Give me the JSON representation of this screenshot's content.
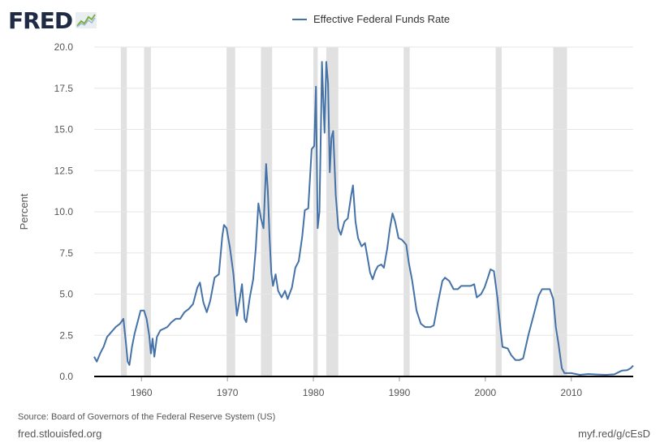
{
  "brand": {
    "logo_text": "FRED"
  },
  "footer": {
    "source": "Source: Board of Governors of the Federal Reserve System (US)",
    "site": "fred.stlouisfed.org",
    "short_url": "myf.red/g/cEsD"
  },
  "chart_data": {
    "type": "line",
    "title": "",
    "xlabel": "",
    "ylabel": "Percent",
    "xlim": [
      1954.5,
      2017.2
    ],
    "ylim": [
      0,
      20
    ],
    "yticks": [
      0.0,
      2.5,
      5.0,
      7.5,
      10.0,
      12.5,
      15.0,
      17.5,
      20.0
    ],
    "ytick_labels": [
      "0.0",
      "2.5",
      "5.0",
      "7.5",
      "10.0",
      "12.5",
      "15.0",
      "17.5",
      "20.0"
    ],
    "xticks": [
      1960,
      1970,
      1980,
      1990,
      2000,
      2010
    ],
    "xtick_labels": [
      "1960",
      "1970",
      "1980",
      "1990",
      "2000",
      "2010"
    ],
    "grid": true,
    "legend_position": "top-center",
    "recessions": [
      [
        1957.6,
        1958.3
      ],
      [
        1960.3,
        1961.1
      ],
      [
        1969.9,
        1970.9
      ],
      [
        1973.9,
        1975.2
      ],
      [
        1980.0,
        1980.5
      ],
      [
        1981.5,
        1982.9
      ],
      [
        1990.5,
        1991.2
      ],
      [
        2001.2,
        2001.9
      ],
      [
        2007.9,
        2009.5
      ]
    ],
    "series": [
      {
        "name": "Effective Federal Funds Rate",
        "color": "#4572a7",
        "points": [
          [
            1954.5,
            1.2
          ],
          [
            1954.8,
            0.9
          ],
          [
            1955.2,
            1.4
          ],
          [
            1955.6,
            1.8
          ],
          [
            1956.0,
            2.4
          ],
          [
            1956.5,
            2.7
          ],
          [
            1957.0,
            3.0
          ],
          [
            1957.5,
            3.2
          ],
          [
            1957.9,
            3.5
          ],
          [
            1958.2,
            2.0
          ],
          [
            1958.4,
            0.9
          ],
          [
            1958.6,
            0.7
          ],
          [
            1958.9,
            1.8
          ],
          [
            1959.2,
            2.6
          ],
          [
            1959.6,
            3.4
          ],
          [
            1959.9,
            4.0
          ],
          [
            1960.3,
            4.0
          ],
          [
            1960.6,
            3.5
          ],
          [
            1960.9,
            2.5
          ],
          [
            1961.1,
            1.4
          ],
          [
            1961.3,
            2.3
          ],
          [
            1961.5,
            1.2
          ],
          [
            1961.8,
            2.4
          ],
          [
            1962.2,
            2.8
          ],
          [
            1962.6,
            2.9
          ],
          [
            1963.0,
            3.0
          ],
          [
            1963.5,
            3.3
          ],
          [
            1964.0,
            3.5
          ],
          [
            1964.5,
            3.5
          ],
          [
            1965.0,
            3.9
          ],
          [
            1965.5,
            4.1
          ],
          [
            1966.0,
            4.4
          ],
          [
            1966.5,
            5.4
          ],
          [
            1966.8,
            5.7
          ],
          [
            1967.2,
            4.5
          ],
          [
            1967.6,
            3.9
          ],
          [
            1968.0,
            4.6
          ],
          [
            1968.5,
            6.0
          ],
          [
            1969.0,
            6.2
          ],
          [
            1969.4,
            8.5
          ],
          [
            1969.6,
            9.2
          ],
          [
            1969.9,
            9.0
          ],
          [
            1970.3,
            7.8
          ],
          [
            1970.7,
            6.2
          ],
          [
            1971.1,
            3.7
          ],
          [
            1971.4,
            4.6
          ],
          [
            1971.7,
            5.6
          ],
          [
            1972.0,
            3.5
          ],
          [
            1972.2,
            3.3
          ],
          [
            1972.6,
            4.8
          ],
          [
            1973.0,
            5.9
          ],
          [
            1973.3,
            7.8
          ],
          [
            1973.6,
            10.5
          ],
          [
            1973.9,
            9.6
          ],
          [
            1974.2,
            9.0
          ],
          [
            1974.5,
            12.9
          ],
          [
            1974.7,
            11.3
          ],
          [
            1974.9,
            8.5
          ],
          [
            1975.1,
            6.3
          ],
          [
            1975.3,
            5.5
          ],
          [
            1975.6,
            6.2
          ],
          [
            1975.9,
            5.2
          ],
          [
            1976.3,
            4.8
          ],
          [
            1976.7,
            5.2
          ],
          [
            1977.0,
            4.7
          ],
          [
            1977.5,
            5.4
          ],
          [
            1977.9,
            6.6
          ],
          [
            1978.3,
            7.0
          ],
          [
            1978.7,
            8.5
          ],
          [
            1979.0,
            10.1
          ],
          [
            1979.4,
            10.2
          ],
          [
            1979.8,
            13.8
          ],
          [
            1980.1,
            14.0
          ],
          [
            1980.3,
            17.6
          ],
          [
            1980.5,
            9.0
          ],
          [
            1980.7,
            10.0
          ],
          [
            1980.9,
            15.9
          ],
          [
            1981.0,
            19.1
          ],
          [
            1981.2,
            16.0
          ],
          [
            1981.3,
            14.8
          ],
          [
            1981.5,
            19.1
          ],
          [
            1981.7,
            17.8
          ],
          [
            1981.9,
            12.4
          ],
          [
            1982.1,
            14.5
          ],
          [
            1982.3,
            14.9
          ],
          [
            1982.6,
            11.0
          ],
          [
            1982.9,
            9.0
          ],
          [
            1983.2,
            8.6
          ],
          [
            1983.6,
            9.4
          ],
          [
            1984.0,
            9.6
          ],
          [
            1984.4,
            11.0
          ],
          [
            1984.6,
            11.6
          ],
          [
            1984.9,
            9.4
          ],
          [
            1985.2,
            8.4
          ],
          [
            1985.6,
            7.9
          ],
          [
            1986.0,
            8.1
          ],
          [
            1986.3,
            7.2
          ],
          [
            1986.6,
            6.3
          ],
          [
            1986.9,
            5.9
          ],
          [
            1987.2,
            6.4
          ],
          [
            1987.5,
            6.7
          ],
          [
            1987.9,
            6.8
          ],
          [
            1988.2,
            6.6
          ],
          [
            1988.6,
            7.8
          ],
          [
            1988.9,
            9.0
          ],
          [
            1989.2,
            9.9
          ],
          [
            1989.5,
            9.4
          ],
          [
            1989.9,
            8.4
          ],
          [
            1990.3,
            8.3
          ],
          [
            1990.8,
            8.0
          ],
          [
            1991.1,
            6.9
          ],
          [
            1991.5,
            5.8
          ],
          [
            1992.0,
            4.0
          ],
          [
            1992.5,
            3.2
          ],
          [
            1993.0,
            3.0
          ],
          [
            1993.6,
            3.0
          ],
          [
            1994.0,
            3.1
          ],
          [
            1994.5,
            4.5
          ],
          [
            1995.0,
            5.8
          ],
          [
            1995.3,
            6.0
          ],
          [
            1995.8,
            5.8
          ],
          [
            1996.3,
            5.3
          ],
          [
            1996.8,
            5.3
          ],
          [
            1997.2,
            5.5
          ],
          [
            1997.7,
            5.5
          ],
          [
            1998.3,
            5.5
          ],
          [
            1998.7,
            5.6
          ],
          [
            1999.0,
            4.8
          ],
          [
            1999.5,
            5.0
          ],
          [
            1999.9,
            5.4
          ],
          [
            2000.3,
            6.0
          ],
          [
            2000.6,
            6.5
          ],
          [
            2001.0,
            6.4
          ],
          [
            2001.4,
            4.8
          ],
          [
            2001.8,
            2.7
          ],
          [
            2002.0,
            1.8
          ],
          [
            2002.6,
            1.7
          ],
          [
            2003.0,
            1.3
          ],
          [
            2003.5,
            1.0
          ],
          [
            2004.0,
            1.0
          ],
          [
            2004.4,
            1.1
          ],
          [
            2005.0,
            2.5
          ],
          [
            2005.6,
            3.7
          ],
          [
            2006.2,
            4.9
          ],
          [
            2006.6,
            5.3
          ],
          [
            2007.5,
            5.3
          ],
          [
            2007.9,
            4.7
          ],
          [
            2008.2,
            3.0
          ],
          [
            2008.5,
            2.0
          ],
          [
            2008.9,
            0.5
          ],
          [
            2009.2,
            0.2
          ],
          [
            2010.0,
            0.2
          ],
          [
            2011.0,
            0.1
          ],
          [
            2012.0,
            0.15
          ],
          [
            2013.0,
            0.12
          ],
          [
            2014.0,
            0.1
          ],
          [
            2015.0,
            0.13
          ],
          [
            2015.9,
            0.36
          ],
          [
            2016.5,
            0.38
          ],
          [
            2016.9,
            0.5
          ],
          [
            2017.2,
            0.66
          ]
        ]
      }
    ]
  }
}
